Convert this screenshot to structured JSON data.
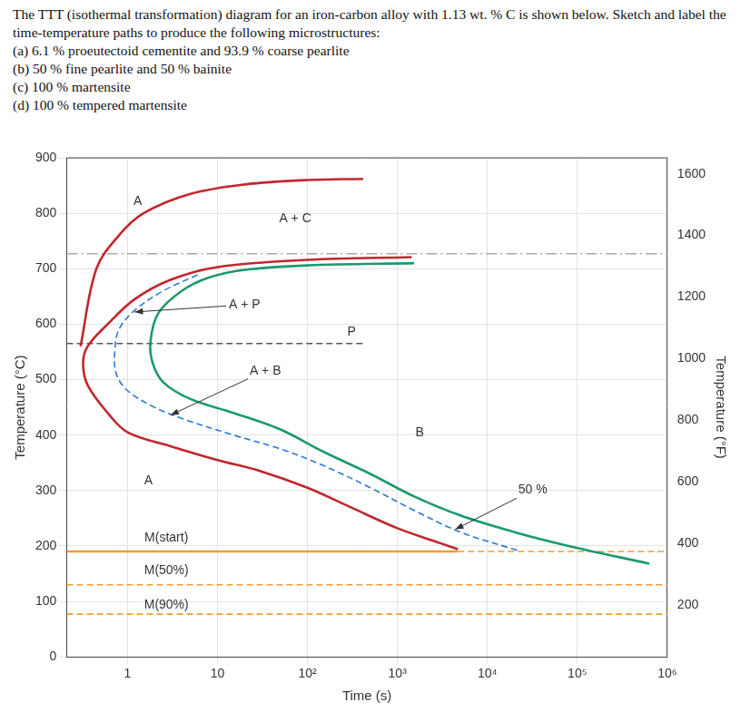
{
  "document": {
    "intro": "The TTT (isothermal transformation) diagram for an iron-carbon alloy with 1.13 wt. % C is shown below. Sketch and label the time-temperature paths to produce the following microstructures:",
    "items": [
      "(a) 6.1 % proeutectoid cementite and 93.9 % coarse pearlite",
      "(b) 50 % fine pearlite and 50 % bainite",
      "(c) 100 % martensite",
      "(d) 100 % tempered martensite"
    ]
  },
  "chart_data": {
    "type": "line",
    "x_label": "Time (s)",
    "y_label": "Temperature (°C)",
    "y2_label": "Temperature (°F)",
    "log": "x",
    "grid": true,
    "xlim": [
      0.21,
      1000000
    ],
    "xticks": [
      1,
      10,
      {
        "value": 100,
        "label": "10²"
      },
      {
        "value": 1000,
        "label": "10³"
      },
      {
        "value": 10000,
        "label": "10⁴"
      },
      {
        "value": 100000,
        "label": "10⁵"
      },
      {
        "value": 1000000,
        "label": "10⁶"
      }
    ],
    "ylim": [
      0,
      900
    ],
    "yticks": [
      0,
      100,
      200,
      300,
      400,
      500,
      600,
      700,
      800,
      900
    ],
    "y2lim": [
      32,
      1652
    ],
    "y2ticks": [
      200,
      400,
      600,
      800,
      1000,
      1200,
      1400,
      1600
    ],
    "series": [
      {
        "color": "#c1272d",
        "line_style": "solid",
        "x": [
          0.3,
          0.45,
          0.8,
          1.5,
          5,
          20,
          100,
          415
        ],
        "values": [
          560,
          700,
          760,
          800,
          835,
          852,
          860,
          862
        ]
      },
      {
        "color": "#c1272d",
        "line_style": "solid",
        "x": [
          1440,
          100,
          10,
          3,
          1.2,
          0.6,
          0.36,
          0.32,
          0.36,
          0.6,
          1,
          3,
          10,
          30,
          100,
          300,
          1000,
          3000,
          4700
        ],
        "values": [
          721,
          716,
          703,
          680,
          645,
          600,
          560,
          530,
          490,
          440,
          405,
          380,
          355,
          335,
          305,
          270,
          232,
          205,
          194
        ]
      },
      {
        "color": "#2b7bd1",
        "line_style": "dashed",
        "x": [
          6,
          2.5,
          1.2,
          0.8,
          0.72,
          0.75,
          1,
          2,
          4,
          15,
          50,
          150,
          500,
          1500,
          5000,
          21600
        ],
        "values": [
          689,
          660,
          625,
          590,
          550,
          510,
          480,
          450,
          430,
          400,
          375,
          345,
          305,
          265,
          225,
          192
        ]
      },
      {
        "color": "#1a9a6c",
        "line_style": "solid",
        "x": [
          1530,
          100,
          20,
          8,
          4,
          2.2,
          1.8,
          1.9,
          2.5,
          5,
          15,
          50,
          150,
          500,
          1500,
          5000,
          20000,
          80000,
          630000
        ],
        "values": [
          710,
          706,
          698,
          684,
          660,
          620,
          570,
          530,
          495,
          465,
          440,
          410,
          370,
          330,
          290,
          255,
          225,
          200,
          168
        ]
      },
      {
        "color": "#aaaaaa",
        "line_style": "dashdot",
        "x": [
          0.21,
          1000000
        ],
        "values": [
          727,
          727
        ]
      },
      {
        "color": "#555555",
        "line_style": "dashed",
        "x": [
          0.21,
          415
        ],
        "values": [
          565,
          565
        ]
      },
      {
        "color": "#f39c34",
        "line_style": "solid",
        "x": [
          0.21,
          4700
        ],
        "values": [
          190,
          190
        ]
      },
      {
        "color": "#f39c34",
        "line_style": "dashed",
        "x": [
          4700,
          1000000
        ],
        "values": [
          190,
          190
        ]
      },
      {
        "color": "#f39c34",
        "line_style": "dashed",
        "x": [
          0.21,
          1000000
        ],
        "values": [
          130,
          130
        ]
      },
      {
        "color": "#f39c34",
        "line_style": "dashed",
        "x": [
          0.21,
          1000000
        ],
        "values": [
          77,
          77
        ]
      }
    ],
    "annotations": [
      {
        "text": "A",
        "x": 1.3,
        "y": 822
      },
      {
        "text": "A + C",
        "x": 73,
        "y": 790
      },
      {
        "text": "A + P",
        "x": 20,
        "y": 635,
        "arrow_to": [
          1.2,
          622
        ]
      },
      {
        "text": "P",
        "x": 310,
        "y": 586
      },
      {
        "text": "A + B",
        "x": 34,
        "y": 516,
        "arrow_to": [
          3,
          436
        ]
      },
      {
        "text": "B",
        "x": 1770,
        "y": 404
      },
      {
        "text": "A",
        "x": 1.7,
        "y": 318
      },
      {
        "text": "50 %",
        "x": 32000,
        "y": 301,
        "arrow_to": [
          4400,
          230
        ]
      },
      {
        "text": "M(start)",
        "x": 2.7,
        "y": 215
      },
      {
        "text": "M(50%)",
        "x": 2.7,
        "y": 155
      },
      {
        "text": "M(90%)",
        "x": 2.7,
        "y": 93
      }
    ]
  }
}
